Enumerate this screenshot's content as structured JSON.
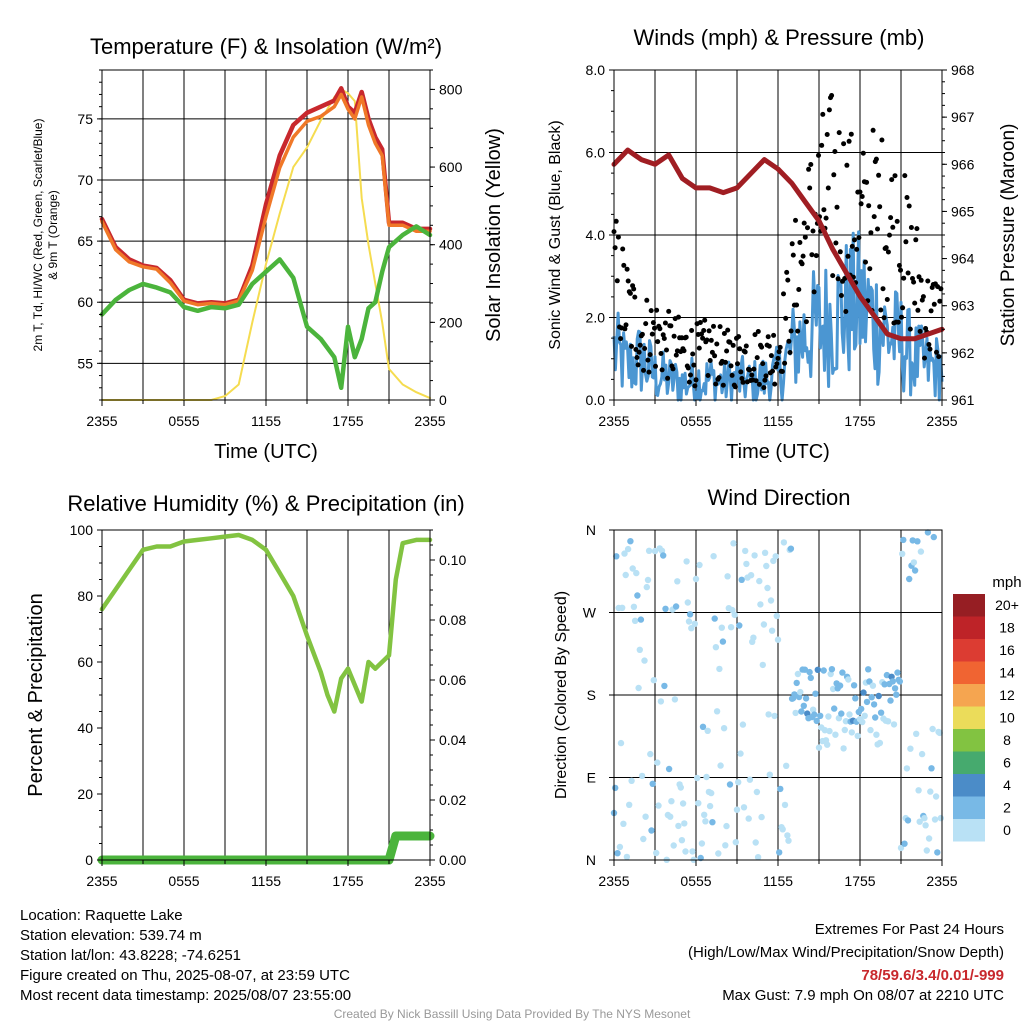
{
  "ticks_time": [
    "2355",
    "0555",
    "1155",
    "1755",
    "2355"
  ],
  "chart_data": [
    {
      "type": "line",
      "title": "Temperature (F) & Insolation (W/m²)",
      "xlabel": "Time (UTC)",
      "ylabel_left_line1": "2m T, Td, HI/WC (Red, Green, Scarlet/Blue)",
      "ylabel_left_line2": "& 9m T (Orange)",
      "ylabel_right": "Solar Insolation (Yellow)",
      "ylim": [
        52,
        79
      ],
      "ylim_right": [
        0,
        850
      ],
      "yticks_left": [
        55,
        60,
        65,
        70,
        75
      ],
      "yticks_right": [
        0,
        200,
        400,
        600,
        800
      ],
      "x_hours": [
        0,
        1,
        2,
        3,
        4,
        5,
        6,
        7,
        8,
        9,
        10,
        11,
        12,
        13,
        14,
        15,
        16,
        17,
        17.5,
        18,
        18.5,
        19,
        19.5,
        20,
        20.5,
        21,
        22,
        23,
        24
      ],
      "series": [
        {
          "name": "2m T",
          "color": "#c8282d",
          "values": [
            66.8,
            64.5,
            63.5,
            63,
            62.8,
            61.8,
            60.2,
            59.9,
            60,
            59.9,
            60.2,
            63,
            68,
            72,
            74.5,
            75.5,
            76,
            76.5,
            77.5,
            76,
            75.5,
            77.2,
            75,
            73.5,
            72.5,
            66.5,
            66.5,
            66,
            66
          ]
        },
        {
          "name": "9m T",
          "color": "#f07828",
          "values": [
            66.6,
            64.3,
            63.3,
            62.9,
            62.7,
            61.6,
            60.1,
            59.8,
            59.9,
            59.8,
            60.1,
            62.6,
            67,
            71,
            73.5,
            74.8,
            75.2,
            76,
            77,
            75.8,
            75,
            76.8,
            74.5,
            73,
            72,
            66.3,
            66.3,
            65.8,
            65.8
          ]
        },
        {
          "name": "Td",
          "color": "#4bb43c",
          "values": [
            59,
            60.2,
            61,
            61.5,
            61.2,
            60.8,
            59.6,
            59.3,
            59.6,
            59.5,
            59.8,
            61.5,
            62.5,
            63.5,
            62,
            58,
            57,
            55.5,
            53,
            58,
            55.5,
            57,
            59.5,
            60,
            62.5,
            64.5,
            65.5,
            66.2,
            65.5
          ]
        },
        {
          "name": "Solar",
          "color": "#f5dc50",
          "axis": "right",
          "values": [
            0,
            0,
            0,
            0,
            0,
            0,
            0,
            0,
            0,
            10,
            40,
            200,
            350,
            480,
            600,
            650,
            720,
            780,
            800,
            790,
            770,
            520,
            400,
            300,
            200,
            80,
            40,
            20,
            5
          ]
        }
      ]
    },
    {
      "type": "scatter",
      "title": "Winds (mph) & Pressure (mb)",
      "xlabel": "Time (UTC)",
      "ylabel_left": "Sonic Wind & Gust (Blue, Black)",
      "ylabel_right": "Station Pressure (Maroon)",
      "ylim": [
        0,
        8
      ],
      "ylim_right": [
        961,
        968
      ],
      "yticks_left": [
        "0.0",
        "2.0",
        "4.0",
        "6.0",
        "8.0"
      ],
      "yticks_right": [
        961,
        962,
        963,
        964,
        965,
        966,
        967,
        968
      ],
      "x_hours": [
        0,
        1,
        2,
        3,
        4,
        5,
        6,
        7,
        8,
        9,
        10,
        11,
        12,
        13,
        14,
        15,
        16,
        17,
        18,
        19,
        20,
        21,
        22,
        23,
        24
      ],
      "series": [
        {
          "name": "Wind",
          "color": "#4b96d2",
          "values": [
            1.2,
            0.8,
            1.0,
            0.6,
            0.5,
            0.4,
            0.5,
            0.5,
            0.4,
            0.5,
            0.4,
            0.5,
            0.6,
            1.2,
            1.6,
            1.8,
            2.0,
            2.2,
            2.3,
            2.0,
            1.6,
            1.4,
            1.0,
            0.8,
            0.8
          ]
        },
        {
          "name": "Gust",
          "color": "#000000",
          "values": [
            3.0,
            2.2,
            1.6,
            1.6,
            1.3,
            1.2,
            1.1,
            1.2,
            1.0,
            1.0,
            1.1,
            1.0,
            1.2,
            2.5,
            3.8,
            4.5,
            5.0,
            4.5,
            4.0,
            4.4,
            4.2,
            3.8,
            3.0,
            2.0,
            2.0
          ]
        },
        {
          "name": "Pressure",
          "color": "#a01e23",
          "axis": "right",
          "values": [
            966.0,
            966.3,
            966.1,
            966.0,
            966.2,
            965.7,
            965.5,
            965.5,
            965.4,
            965.5,
            965.8,
            966.1,
            965.9,
            965.6,
            965.2,
            964.8,
            964.2,
            963.7,
            963.2,
            962.8,
            962.4,
            962.3,
            962.3,
            962.4,
            962.5
          ]
        }
      ]
    },
    {
      "type": "line",
      "title": "Relative Humidity (%) & Precipitation (in)",
      "ylabel_left": "Percent & Precipitation",
      "ylim": [
        0,
        100
      ],
      "ylim_right": [
        0,
        0.11
      ],
      "yticks_left": [
        0,
        20,
        40,
        60,
        80,
        100
      ],
      "yticks_right": [
        "0.00",
        "0.02",
        "0.04",
        "0.06",
        "0.08",
        "0.10"
      ],
      "x_hours": [
        0,
        1,
        2,
        3,
        4,
        5,
        6,
        7,
        8,
        9,
        10,
        11,
        12,
        13,
        14,
        15,
        16,
        16.5,
        17,
        17.5,
        18,
        19,
        19.5,
        20,
        21,
        21.5,
        22,
        23,
        24
      ],
      "series": [
        {
          "name": "RH",
          "color": "#82c341",
          "values": [
            76,
            82,
            88,
            94,
            95,
            95,
            96.5,
            97,
            97.5,
            98,
            98.5,
            97,
            94,
            87,
            80,
            68,
            57,
            50,
            45,
            55,
            58,
            48,
            60,
            58,
            62,
            85,
            96,
            97,
            97
          ]
        },
        {
          "name": "Precip",
          "color": "#4bb43c",
          "axis": "right",
          "values": [
            0,
            0,
            0,
            0,
            0,
            0,
            0,
            0,
            0,
            0,
            0,
            0,
            0,
            0,
            0,
            0,
            0,
            0,
            0,
            0,
            0,
            0,
            0,
            0,
            0,
            0.008,
            0.008,
            0.008,
            0.008
          ]
        }
      ]
    },
    {
      "type": "scatter",
      "title": "Wind Direction",
      "ylabel_left": "Direction (Colored By Speed)",
      "yticks_left": [
        "N",
        "E",
        "S",
        "W",
        "N"
      ],
      "legend_unit": "mph",
      "legend_labels": [
        "20+",
        "18",
        "16",
        "14",
        "12",
        "10",
        "8",
        "6",
        "4",
        "2",
        "0"
      ],
      "legend_colors": [
        "#961e23",
        "#be2328",
        "#dc3c32",
        "#f06432",
        "#f5a550",
        "#ebdc5a",
        "#82c341",
        "#46aa6e",
        "#4b8cc8",
        "#78b9e6",
        "#b9e1f5"
      ]
    }
  ],
  "info": {
    "location": "Location: Raquette Lake",
    "elevation": "Station elevation: 539.74 m",
    "latlon": "Station lat/lon: 43.8228; -74.6251",
    "created": "Figure created on Thu, 2025-08-07, at 23:59 UTC",
    "recent": "Most recent data timestamp: 2025/08/07 23:55:00"
  },
  "extremes": {
    "title": "Extremes For Past 24 Hours",
    "subtitle": "(High/Low/Max Wind/Precipitation/Snow Depth)",
    "values": "78/59.6/3.4/0.01/-999",
    "gust": "Max Gust: 7.9 mph On 08/07 at 2210 UTC"
  },
  "credit": "Created By Nick Bassill Using Data Provided By The NYS Mesonet"
}
